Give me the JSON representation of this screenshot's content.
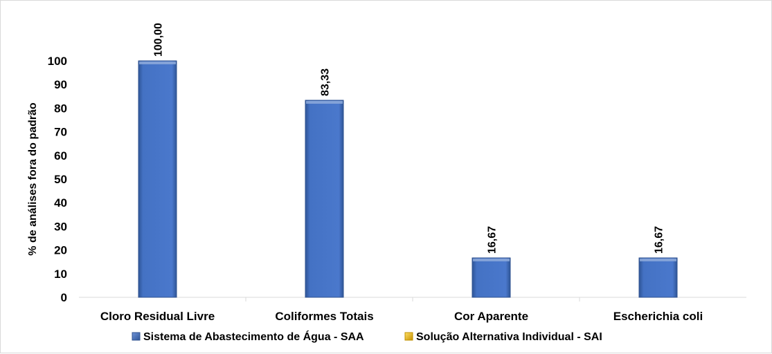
{
  "chart_data": {
    "type": "bar",
    "title": "",
    "xlabel": "",
    "ylabel": "% de análises fora do padrão",
    "ylim": [
      0,
      100
    ],
    "yticks": [
      0,
      10,
      20,
      30,
      40,
      50,
      60,
      70,
      80,
      90,
      100
    ],
    "categories": [
      "Cloro Residual Livre",
      "Coliformes Totais",
      "Cor Aparente",
      "Escherichia coli"
    ],
    "series": [
      {
        "name": "Sistema de Abastecimento de Água - SAA",
        "color": "#4472c4",
        "values": [
          100.0,
          83.33,
          16.67,
          16.67
        ],
        "labels": [
          "100,00",
          "83,33",
          "16,67",
          "16,67"
        ]
      },
      {
        "name": "Solução Alternativa Individual - SAI",
        "color": "#ffc000",
        "values": [
          null,
          null,
          null,
          null
        ],
        "labels": []
      }
    ],
    "grid": false,
    "legend_position": "bottom"
  }
}
